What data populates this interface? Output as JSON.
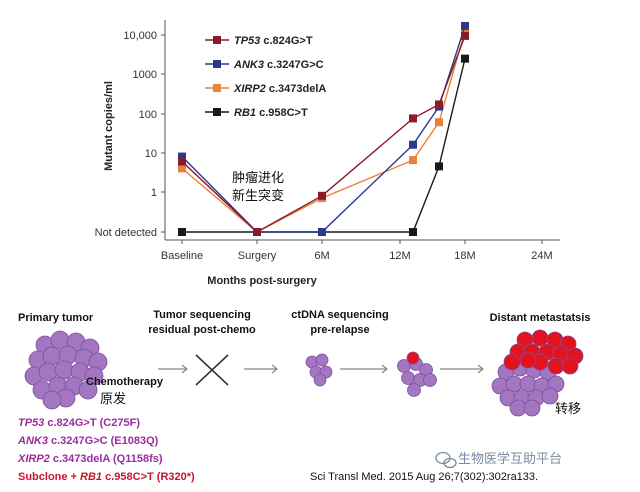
{
  "chart_data": {
    "type": "line",
    "xlabel": "Months post-surgery",
    "ylabel": "Mutant copies/ml",
    "x_categories": [
      "Baseline",
      "Surgery",
      "6M",
      "12M",
      "18M",
      "24M"
    ],
    "y_ticks": [
      "Not detected",
      "1",
      "10",
      "100",
      "1000",
      "10,000"
    ],
    "y_scale": "log",
    "y_not_detected_value": 0.1,
    "series": [
      {
        "name": "TP53",
        "mutation": "c.824G>T",
        "color": "#8b1a2b",
        "points": [
          [
            0,
            6
          ],
          [
            2,
            0.1
          ],
          [
            4,
            0.8
          ],
          [
            6.4,
            75
          ],
          [
            7.2,
            170
          ],
          [
            8,
            9500
          ]
        ]
      },
      {
        "name": "ANK3",
        "mutation": "c.3247G>C",
        "color": "#2b3a8c",
        "points": [
          [
            0,
            8
          ],
          [
            2,
            0.1
          ],
          [
            4,
            0.1
          ],
          [
            6.4,
            16
          ],
          [
            7.2,
            150
          ],
          [
            8,
            17000
          ]
        ]
      },
      {
        "name": "XIRP2",
        "mutation": "c.3473delA",
        "color": "#e8823a",
        "points": [
          [
            0,
            4
          ],
          [
            2,
            0.1
          ],
          [
            4,
            0.7
          ],
          [
            6.4,
            6.5
          ],
          [
            7.2,
            60
          ],
          [
            8,
            13000
          ]
        ]
      },
      {
        "name": "RB1",
        "mutation": "c.958C>T",
        "color": "#1a1a1a",
        "points": [
          [
            0,
            0.1
          ],
          [
            2,
            0.1
          ],
          [
            4,
            0.1
          ],
          [
            6.4,
            0.1
          ],
          [
            7.2,
            4.5
          ],
          [
            8,
            2500
          ]
        ]
      }
    ]
  },
  "annotation": {
    "line1": "肿瘤进化",
    "line2": "新生突变"
  },
  "stages": {
    "primary": {
      "title": "Primary tumor",
      "label_en": "Chemotherapy",
      "label_cn": "原发"
    },
    "sequencing": {
      "line1": "Tumor sequencing",
      "line2": "residual post-chemo"
    },
    "ctdna": {
      "line1": "ctDNA sequencing",
      "line2": "pre-relapse"
    },
    "metastasis": {
      "title": "Distant metastatsis",
      "label_cn": "转移"
    }
  },
  "mutations": [
    {
      "gene": "TP53",
      "detail": " c.824G>T (C275F)"
    },
    {
      "gene": "ANK3",
      "detail": " c.3247G>C (E1083Q)"
    },
    {
      "gene": "XIRP2",
      "detail": " c.3473delA (Q1158fs)"
    }
  ],
  "subclone": {
    "prefix": "Subclone + ",
    "gene": "RB1",
    "detail": " c.958C>T (R320*)"
  },
  "citation": "Sci Transl Med. 2015 Aug 26;7(302):302ra133.",
  "watermark": "生物医学互助平台",
  "colors": {
    "cell": "#a276c0",
    "cell_dark": "#7c4f9e",
    "mut_cell": "#e2131f",
    "arrow": "#888888"
  }
}
